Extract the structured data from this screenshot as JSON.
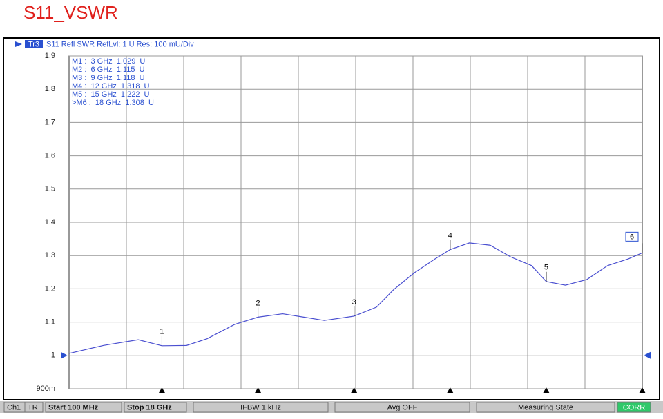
{
  "chart_data": {
    "type": "line",
    "title": "S11_VSWR",
    "header": {
      "trace": "Tr3",
      "text": "S11 Refl SWR RefLvl: 1 U Res: 100 mU/Div"
    },
    "x": [
      0.1,
      1.18,
      2.26,
      3.0,
      3.77,
      4.41,
      5.27,
      6.0,
      6.77,
      7.43,
      8.07,
      9.0,
      9.7,
      10.23,
      10.88,
      11.53,
      12.0,
      12.6,
      13.25,
      13.89,
      14.54,
      15.0,
      15.6,
      16.27,
      16.92,
      17.56,
      18.0
    ],
    "series": [
      {
        "name": "S11",
        "color": "#4a4fd0",
        "values": [
          1.006,
          1.03,
          1.047,
          1.029,
          1.03,
          1.05,
          1.093,
          1.115,
          1.125,
          1.115,
          1.105,
          1.118,
          1.145,
          1.197,
          1.248,
          1.29,
          1.318,
          1.338,
          1.331,
          1.296,
          1.27,
          1.222,
          1.211,
          1.228,
          1.27,
          1.29,
          1.308
        ]
      }
    ],
    "markers": [
      {
        "label": "1",
        "x": 3,
        "y": 1.029
      },
      {
        "label": "2",
        "x": 6,
        "y": 1.115
      },
      {
        "label": "3",
        "x": 9,
        "y": 1.118
      },
      {
        "label": "4",
        "x": 12,
        "y": 1.318
      },
      {
        "label": "5",
        "x": 15,
        "y": 1.222
      },
      {
        "label": "6",
        "x": 18,
        "y": 1.308
      }
    ],
    "marker_table": [
      "M1 :  3 GHz  1.029  U",
      "M2 :  6 GHz  1.115  U",
      "M3 :  9 GHz  1.118  U",
      "M4 :  12 GHz  1.318  U",
      "M5 :  15 GHz  1.222  U",
      ">M6 :  18 GHz  1.308  U"
    ],
    "xlim": [
      0.1,
      18
    ],
    "ylim": [
      0.9,
      1.9
    ],
    "yticks": [
      {
        "value": 0.9,
        "label": "900m"
      },
      1,
      1.1,
      1.2,
      1.3,
      1.4,
      1.5,
      1.6,
      1.7,
      1.8,
      1.9
    ],
    "grid": true,
    "status": [
      "Ch1",
      "TR",
      "Start 100 MHz",
      "Stop 18 GHz",
      "IFBW 1 kHz",
      "Avg OFF",
      "Measuring State",
      "CORR"
    ]
  }
}
